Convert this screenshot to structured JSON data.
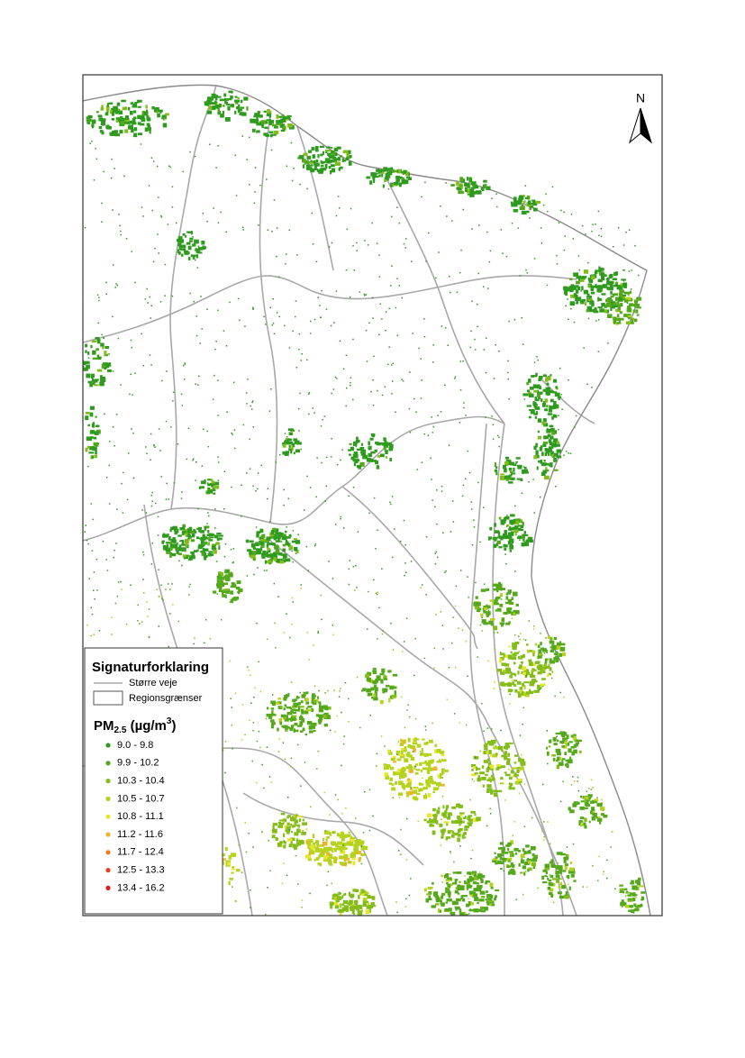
{
  "north_label": "N",
  "legend": {
    "title": "Signaturforklaring",
    "roads_label": "Større veje",
    "regions_label": "Regionsgrænser",
    "pm_title": {
      "base": "PM",
      "sub": "2.5",
      "unit_open": " (µg/m",
      "sup": "3",
      "unit_close": ")"
    },
    "classes": [
      {
        "label": "9.0 - 9.8",
        "color": "#2e9a1e"
      },
      {
        "label": "9.9 - 10.2",
        "color": "#55a81c"
      },
      {
        "label": "10.3 - 10.4",
        "color": "#84bd1a"
      },
      {
        "label": "10.5 - 10.7",
        "color": "#b5d21c"
      },
      {
        "label": "10.8 - 11.1",
        "color": "#e6e62a"
      },
      {
        "label": "11.2 - 11.6",
        "color": "#f2b12a"
      },
      {
        "label": "11.7 - 12.4",
        "color": "#ee7a1c"
      },
      {
        "label": "12.5 - 13.3",
        "color": "#e8401c"
      },
      {
        "label": "13.4 - 16.2",
        "color": "#d91c1c"
      }
    ]
  }
}
